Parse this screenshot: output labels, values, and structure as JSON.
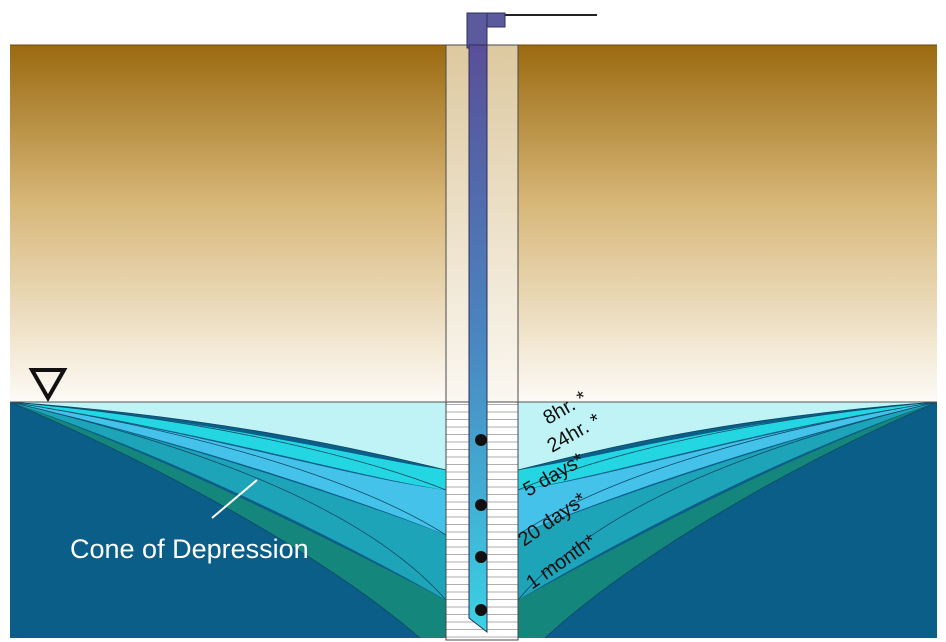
{
  "labels": {
    "cone": "Cone of Depression",
    "times": [
      "8hr. *",
      "24hr. *",
      "5 days*",
      "20 days*",
      "1 month*"
    ]
  },
  "symbols": {
    "water_table": "water-table-triangle-icon"
  },
  "colors": {
    "soil_top": "#9b6a10",
    "soil_bottom": "#fdfbf7",
    "saturated_zone": "#0a5e88",
    "cone_8hr": "#bff3f5",
    "cone_24hr": "#24d6e2",
    "cone_5days": "#44c2ea",
    "cone_20days": "#1ea4b8",
    "cone_1month": "#14867c",
    "pipe_top": "#56509a",
    "pipe_bottom": "#3ad2e4",
    "pump": "#5a5a9c"
  }
}
